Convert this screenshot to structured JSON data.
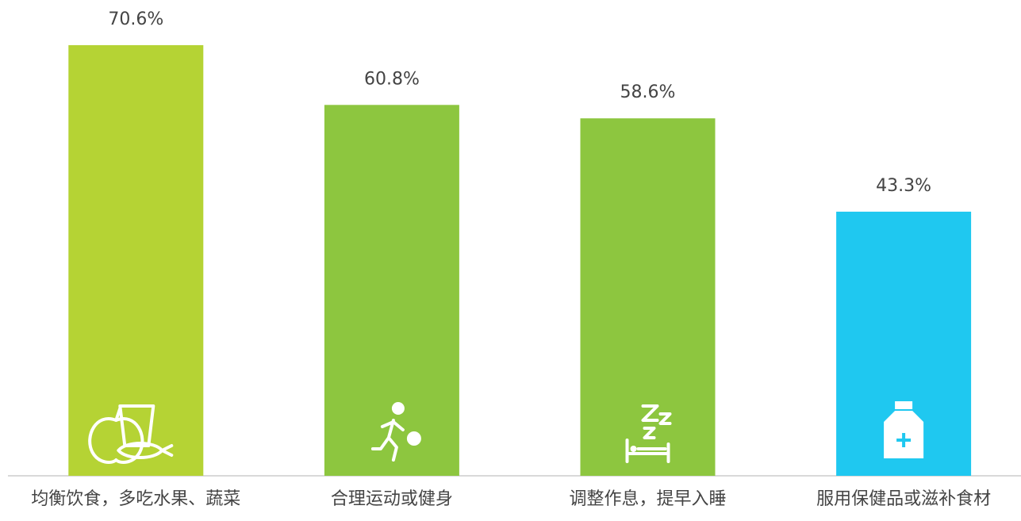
{
  "chart_data": {
    "type": "bar",
    "categories": [
      "均衡饮食，多吃水果、蔬菜",
      "合理运动或健身",
      "调整作息，提早入睡",
      "服用保健品或滋补食材"
    ],
    "values": [
      70.6,
      60.8,
      58.6,
      43.3
    ],
    "value_labels": [
      "70.6%",
      "60.8%",
      "58.6%",
      "43.3%"
    ],
    "colors": [
      "#b5d334",
      "#8dc63f",
      "#8dc63f",
      "#1fc8f0"
    ],
    "ylim": [
      0,
      78
    ]
  }
}
